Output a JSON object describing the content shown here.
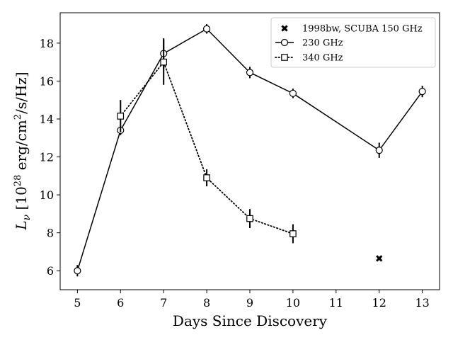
{
  "chart_data": {
    "type": "line",
    "xlabel": "Days Since Discovery",
    "ylabel": "L_ν [10^28 erg/cm²/s/Hz]",
    "xlim": [
      4.6,
      13.4
    ],
    "ylim": [
      5.0,
      19.6
    ],
    "xticks": [
      "5",
      "6",
      "7",
      "8",
      "9",
      "10",
      "11",
      "12",
      "13"
    ],
    "yticks": [
      "6",
      "8",
      "10",
      "12",
      "14",
      "16",
      "18"
    ],
    "grid": false,
    "legend_position": "upper-right",
    "series": [
      {
        "name": "1998bw, SCUBA 150 GHz",
        "style": "scatter",
        "marker": "x",
        "points": [
          {
            "x": 12,
            "y": 6.65,
            "err": 0
          }
        ]
      },
      {
        "name": "230 GHz",
        "style": "solid",
        "marker": "circle",
        "points": [
          {
            "x": 5,
            "y": 6.0,
            "err": 0.3
          },
          {
            "x": 6,
            "y": 13.4,
            "err": 0.25
          },
          {
            "x": 7,
            "y": 17.45,
            "err": 0.8
          },
          {
            "x": 8,
            "y": 18.75,
            "err": 0.25
          },
          {
            "x": 9,
            "y": 16.45,
            "err": 0.3
          },
          {
            "x": 10,
            "y": 15.35,
            "err": 0.25
          },
          {
            "x": 12,
            "y": 12.35,
            "err": 0.4
          },
          {
            "x": 13,
            "y": 15.45,
            "err": 0.3
          }
        ]
      },
      {
        "name": "340 GHz",
        "style": "dotted",
        "marker": "square",
        "points": [
          {
            "x": 6,
            "y": 14.15,
            "err": 0.85
          },
          {
            "x": 7,
            "y": 17.0,
            "err": 1.2
          },
          {
            "x": 8,
            "y": 10.9,
            "err": 0.45
          },
          {
            "x": 9,
            "y": 8.75,
            "err": 0.5
          },
          {
            "x": 10,
            "y": 7.95,
            "err": 0.5
          }
        ]
      }
    ]
  }
}
